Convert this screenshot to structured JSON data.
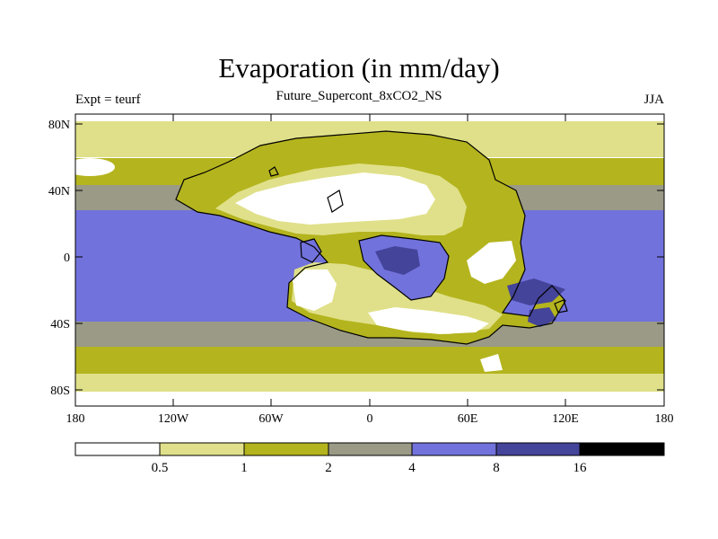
{
  "figure": {
    "title": "Evaporation (in mm/day)",
    "subtitle": "Future_Supercont_8xCO2_NS",
    "left_label": "Expt = teurf",
    "right_label": "JJA"
  },
  "axes": {
    "lat_ticks": [
      "80N",
      "40N",
      "0",
      "40S",
      "80S"
    ],
    "lon_ticks": [
      "180",
      "120W",
      "60W",
      "0",
      "60E",
      "120E",
      "180"
    ]
  },
  "colorbar": {
    "levels": [
      "0.5",
      "1",
      "2",
      "4",
      "8",
      "16"
    ],
    "colors": [
      "#ffffff",
      "#e0e08a",
      "#b4b41e",
      "#9a9a86",
      "#7272dc",
      "#44449a",
      "#000000"
    ]
  },
  "palette": {
    "white": "#ffffff",
    "pale_yellow": "#e0e08a",
    "olive": "#b4b41e",
    "gray": "#9a9a86",
    "blue": "#7272dc",
    "dark_blue": "#44449a",
    "coast": "#000000"
  }
}
